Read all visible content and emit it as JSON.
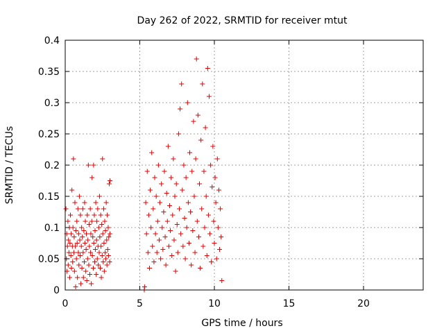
{
  "chart_data": {
    "type": "scatter",
    "title": "Day 262 of 2022, SRMTID for receiver mtut",
    "xlabel": "GPS time / hours",
    "ylabel": "SRMTID / TECUs",
    "xlim": [
      0,
      24
    ],
    "ylim": [
      0,
      0.4
    ],
    "xticks": [
      0,
      5,
      10,
      15,
      20
    ],
    "yticks": [
      0,
      0.05,
      0.1,
      0.15,
      0.2,
      0.25,
      0.3,
      0.35,
      0.4
    ],
    "xtick_labels": [
      "0",
      "5",
      "10",
      "15",
      "20"
    ],
    "ytick_labels": [
      "0",
      "0.05",
      "0.1",
      "0.15",
      "0.2",
      "0.25",
      "0.3",
      "0.35",
      "0.4"
    ],
    "grid": true,
    "marker": "+",
    "color": "#e00000",
    "series": [
      {
        "values": [
          [
            0.05,
            0.13
          ],
          [
            0.08,
            0.05
          ],
          [
            0.1,
            0.09
          ],
          [
            0.12,
            0.03
          ],
          [
            0.15,
            0.07
          ],
          [
            0.18,
            0.11
          ],
          [
            0.2,
            0.04
          ],
          [
            0.22,
            0.08
          ],
          [
            0.25,
            0.06
          ],
          [
            0.28,
            0.1
          ],
          [
            0.3,
            0.02
          ],
          [
            0.32,
            0.075
          ],
          [
            0.35,
            0.12
          ],
          [
            0.38,
            0.055
          ],
          [
            0.4,
            0.09
          ],
          [
            0.42,
            0.035
          ],
          [
            0.45,
            0.16
          ],
          [
            0.48,
            0.07
          ],
          [
            0.5,
            0.045
          ],
          [
            0.52,
            0.1
          ],
          [
            0.55,
            0.21
          ],
          [
            0.58,
            0.06
          ],
          [
            0.6,
            0.085
          ],
          [
            0.62,
            0.03
          ],
          [
            0.65,
            0.14
          ],
          [
            0.68,
            0.07
          ],
          [
            0.7,
            0.005
          ],
          [
            0.72,
            0.095
          ],
          [
            0.75,
            0.05
          ],
          [
            0.78,
            0.11
          ],
          [
            0.8,
            0.075
          ],
          [
            0.82,
            0.02
          ],
          [
            0.85,
            0.13
          ],
          [
            0.88,
            0.06
          ],
          [
            0.9,
            0.09
          ],
          [
            0.92,
            0.04
          ],
          [
            0.95,
            0.15
          ],
          [
            0.98,
            0.08
          ],
          [
            1.0,
            0.055
          ],
          [
            1.02,
            0.12
          ],
          [
            1.05,
            0.01
          ],
          [
            1.08,
            0.07
          ],
          [
            1.1,
            0.1
          ],
          [
            1.12,
            0.035
          ],
          [
            1.15,
            0.085
          ],
          [
            1.18,
            0.13
          ],
          [
            1.2,
            0.06
          ],
          [
            1.22,
            0.02
          ],
          [
            1.25,
            0.095
          ],
          [
            1.28,
            0.045
          ],
          [
            1.3,
            0.14
          ],
          [
            1.32,
            0.075
          ],
          [
            1.35,
            0.11
          ],
          [
            1.38,
            0.03
          ],
          [
            1.4,
            0.065
          ],
          [
            1.42,
            0.09
          ],
          [
            1.45,
            0.015
          ],
          [
            1.48,
            0.12
          ],
          [
            1.5,
            0.05
          ],
          [
            1.52,
            0.08
          ],
          [
            1.55,
            0.2
          ],
          [
            1.58,
            0.04
          ],
          [
            1.6,
            0.105
          ],
          [
            1.62,
            0.07
          ],
          [
            1.65,
            0.025
          ],
          [
            1.68,
            0.13
          ],
          [
            1.7,
            0.06
          ],
          [
            1.72,
            0.09
          ],
          [
            1.75,
            0.01
          ],
          [
            1.78,
            0.11
          ],
          [
            1.8,
            0.18
          ],
          [
            1.82,
            0.055
          ],
          [
            1.85,
            0.085
          ],
          [
            1.88,
            0.035
          ],
          [
            1.9,
            0.2
          ],
          [
            1.92,
            0.075
          ],
          [
            1.95,
            0.12
          ],
          [
            1.98,
            0.045
          ],
          [
            2.0,
            0.095
          ],
          [
            2.02,
            0.065
          ],
          [
            2.05,
            0.14
          ],
          [
            2.08,
            0.025
          ],
          [
            2.1,
            0.08
          ],
          [
            2.12,
            0.11
          ],
          [
            2.15,
            0.05
          ],
          [
            2.18,
            0.13
          ],
          [
            2.2,
            0.07
          ],
          [
            2.22,
            0.04
          ],
          [
            2.25,
            0.1
          ],
          [
            2.28,
            0.06
          ],
          [
            2.3,
            0.15
          ],
          [
            2.32,
            0.085
          ],
          [
            2.35,
            0.035
          ],
          [
            2.38,
            0.12
          ],
          [
            2.4,
            0.07
          ],
          [
            2.42,
            0.02
          ],
          [
            2.45,
            0.105
          ],
          [
            2.48,
            0.055
          ],
          [
            2.5,
            0.21
          ],
          [
            2.52,
            0.09
          ],
          [
            2.55,
            0.045
          ],
          [
            2.58,
            0.13
          ],
          [
            2.6,
            0.075
          ],
          [
            2.62,
            0.03
          ],
          [
            2.65,
            0.11
          ],
          [
            2.68,
            0.06
          ],
          [
            2.7,
            0.095
          ],
          [
            2.72,
            0.05
          ],
          [
            2.75,
            0.14
          ],
          [
            2.78,
            0.08
          ],
          [
            2.8,
            0.04
          ],
          [
            2.82,
            0.12
          ],
          [
            2.85,
            0.065
          ],
          [
            2.88,
            0.1
          ],
          [
            2.9,
            0.055
          ],
          [
            2.92,
            0.085
          ],
          [
            2.95,
            0.17
          ],
          [
            2.98,
            0.045
          ],
          [
            3.0,
            0.09
          ],
          [
            3.0,
            0.175
          ],
          [
            5.3,
            0.0
          ],
          [
            5.32,
            0.005
          ],
          [
            5.4,
            0.14
          ],
          [
            5.45,
            0.09
          ],
          [
            5.5,
            0.19
          ],
          [
            5.55,
            0.06
          ],
          [
            5.6,
            0.12
          ],
          [
            5.65,
            0.035
          ],
          [
            5.7,
            0.16
          ],
          [
            5.75,
            0.1
          ],
          [
            5.8,
            0.22
          ],
          [
            5.85,
            0.07
          ],
          [
            5.9,
            0.13
          ],
          [
            5.95,
            0.045
          ],
          [
            6.0,
            0.18
          ],
          [
            6.05,
            0.09
          ],
          [
            6.1,
            0.15
          ],
          [
            6.15,
            0.06
          ],
          [
            6.2,
            0.11
          ],
          [
            6.25,
            0.2
          ],
          [
            6.3,
            0.08
          ],
          [
            6.35,
            0.14
          ],
          [
            6.4,
            0.05
          ],
          [
            6.45,
            0.17
          ],
          [
            6.5,
            0.1
          ],
          [
            6.55,
            0.065
          ],
          [
            6.6,
            0.125
          ],
          [
            6.65,
            0.19
          ],
          [
            6.7,
            0.085
          ],
          [
            6.75,
            0.04
          ],
          [
            6.8,
            0.155
          ],
          [
            6.85,
            0.11
          ],
          [
            6.9,
            0.23
          ],
          [
            6.95,
            0.07
          ],
          [
            7.0,
            0.135
          ],
          [
            7.05,
            0.095
          ],
          [
            7.1,
            0.18
          ],
          [
            7.15,
            0.055
          ],
          [
            7.2,
            0.12
          ],
          [
            7.25,
            0.21
          ],
          [
            7.3,
            0.08
          ],
          [
            7.35,
            0.15
          ],
          [
            7.4,
            0.03
          ],
          [
            7.45,
            0.17
          ],
          [
            7.5,
            0.105
          ],
          [
            7.55,
            0.06
          ],
          [
            7.6,
            0.25
          ],
          [
            7.65,
            0.13
          ],
          [
            7.7,
            0.29
          ],
          [
            7.75,
            0.09
          ],
          [
            7.8,
            0.33
          ],
          [
            7.85,
            0.16
          ],
          [
            7.9,
            0.07
          ],
          [
            7.95,
            0.2
          ],
          [
            8.0,
            0.115
          ],
          [
            8.05,
            0.05
          ],
          [
            8.1,
            0.18
          ],
          [
            8.15,
            0.1
          ],
          [
            8.2,
            0.3
          ],
          [
            8.25,
            0.14
          ],
          [
            8.3,
            0.075
          ],
          [
            8.35,
            0.22
          ],
          [
            8.4,
            0.125
          ],
          [
            8.45,
            0.04
          ],
          [
            8.5,
            0.19
          ],
          [
            8.55,
            0.095
          ],
          [
            8.6,
            0.27
          ],
          [
            8.65,
            0.15
          ],
          [
            8.7,
            0.06
          ],
          [
            8.75,
            0.21
          ],
          [
            8.8,
            0.37
          ],
          [
            8.85,
            0.11
          ],
          [
            8.9,
            0.28
          ],
          [
            8.95,
            0.085
          ],
          [
            9.0,
            0.17
          ],
          [
            9.05,
            0.035
          ],
          [
            9.1,
            0.24
          ],
          [
            9.15,
            0.13
          ],
          [
            9.2,
            0.33
          ],
          [
            9.25,
            0.07
          ],
          [
            9.3,
            0.19
          ],
          [
            9.35,
            0.1
          ],
          [
            9.4,
            0.26
          ],
          [
            9.45,
            0.15
          ],
          [
            9.5,
            0.055
          ],
          [
            9.55,
            0.355
          ],
          [
            9.6,
            0.12
          ],
          [
            9.65,
            0.31
          ],
          [
            9.7,
            0.09
          ],
          [
            9.75,
            0.2
          ],
          [
            9.8,
            0.045
          ],
          [
            9.85,
            0.165
          ],
          [
            9.9,
            0.23
          ],
          [
            9.95,
            0.11
          ],
          [
            10.0,
            0.075
          ],
          [
            10.05,
            0.18
          ],
          [
            10.1,
            0.14
          ],
          [
            10.15,
            0.05
          ],
          [
            10.2,
            0.21
          ],
          [
            10.25,
            0.1
          ],
          [
            10.3,
            0.16
          ],
          [
            10.35,
            0.065
          ],
          [
            10.4,
            0.13
          ],
          [
            10.45,
            0.085
          ],
          [
            10.5,
            0.015
          ]
        ]
      }
    ]
  }
}
